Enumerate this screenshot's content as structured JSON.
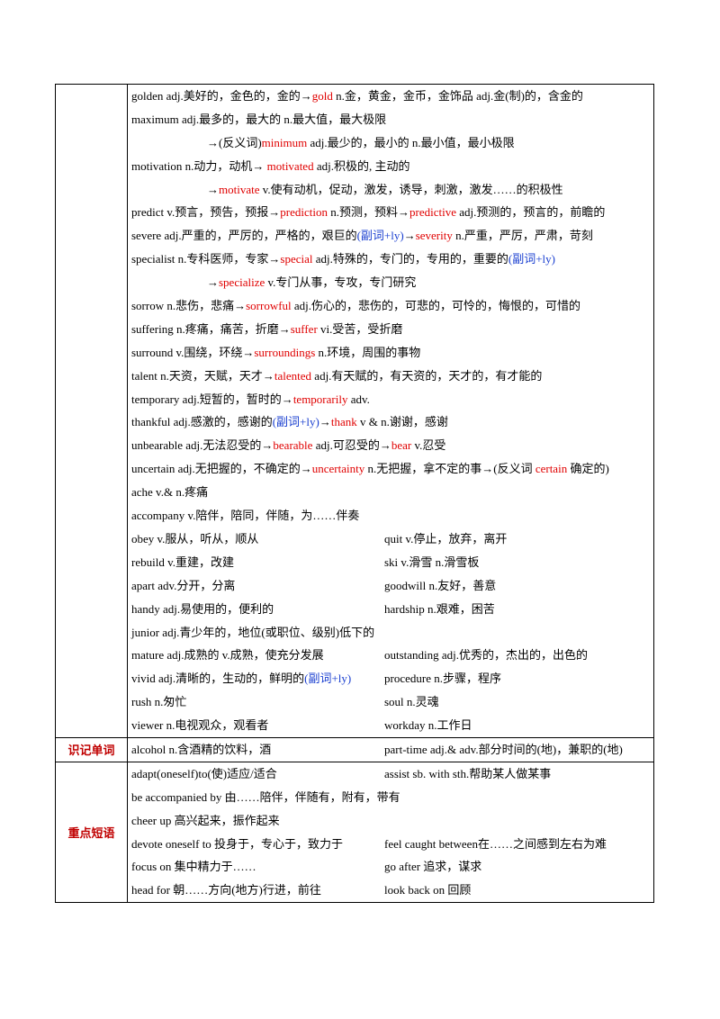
{
  "section1": {
    "lines": [
      {
        "parts": [
          {
            "t": "golden adj.美好的，金色的，金的→"
          },
          {
            "t": "gold",
            "c": "red"
          },
          {
            "t": " n.金，黄金，金币，金饰品  adj.金(制)的，含金的"
          }
        ]
      },
      {
        "parts": [
          {
            "t": "maximum adj.最多的，最大的  n.最大值，最大极限"
          }
        ]
      },
      {
        "indent": true,
        "parts": [
          {
            "t": "→(反义词)"
          },
          {
            "t": "minimum",
            "c": "red"
          },
          {
            "t": " adj.最少的，最小的  n.最小值，最小极限"
          }
        ]
      },
      {
        "parts": [
          {
            "t": "motivation n.动力，动机→  "
          },
          {
            "t": "motivated",
            "c": "red"
          },
          {
            "t": " adj.积极的, 主动的"
          }
        ]
      },
      {
        "indent": true,
        "parts": [
          {
            "t": "→"
          },
          {
            "t": "motivate",
            "c": "red"
          },
          {
            "t": " v.使有动机，促动，激发，诱导，刺激，激发……的积极性"
          }
        ]
      },
      {
        "parts": [
          {
            "t": "predict v.预言，预告，预报→"
          },
          {
            "t": "prediction",
            "c": "red"
          },
          {
            "t": " n.预测，预料→"
          },
          {
            "t": "predictive",
            "c": "red"
          },
          {
            "t": " adj.预测的，预言的，前瞻的"
          }
        ]
      },
      {
        "parts": [
          {
            "t": "severe adj.严重的，严厉的，严格的，艰巨的"
          },
          {
            "t": "(副词+ly)",
            "c": "blue"
          },
          {
            "t": "→"
          },
          {
            "t": "severity",
            "c": "red"
          },
          {
            "t": " n.严重，严厉，严肃，苛刻"
          }
        ]
      },
      {
        "parts": [
          {
            "t": "specialist n.专科医师，专家→"
          },
          {
            "t": "special",
            "c": "red"
          },
          {
            "t": " adj.特殊的，专门的，专用的，重要的"
          },
          {
            "t": "(副词+ly)",
            "c": "blue"
          }
        ]
      },
      {
        "indent": true,
        "parts": [
          {
            "t": "→"
          },
          {
            "t": "specialize",
            "c": "red"
          },
          {
            "t": " v.专门从事，专攻，专门研究"
          }
        ]
      },
      {
        "parts": [
          {
            "t": "sorrow n.悲伤，悲痛→"
          },
          {
            "t": "sorrowful",
            "c": "red"
          },
          {
            "t": " adj.伤心的，悲伤的，可悲的，可怜的，悔恨的，可惜的"
          }
        ]
      },
      {
        "parts": [
          {
            "t": "suffering n.疼痛，痛苦，折磨→"
          },
          {
            "t": "suffer",
            "c": "red"
          },
          {
            "t": " vi.受苦，受折磨"
          }
        ]
      },
      {
        "parts": [
          {
            "t": "surround v.围绕，环绕→"
          },
          {
            "t": "surroundings",
            "c": "red"
          },
          {
            "t": " n.环境，周围的事物"
          }
        ]
      },
      {
        "parts": [
          {
            "t": "talent n.天资，天赋，天才→"
          },
          {
            "t": "talented",
            "c": "red"
          },
          {
            "t": " adj.有天赋的，有天资的，天才的，有才能的"
          }
        ]
      },
      {
        "parts": [
          {
            "t": "temporary adj.短暂的，暂时的→"
          },
          {
            "t": "temporarily",
            "c": "red"
          },
          {
            "t": " adv."
          }
        ]
      },
      {
        "parts": [
          {
            "t": "thankful adj.感激的，感谢的"
          },
          {
            "t": "(副词+ly)",
            "c": "blue"
          },
          {
            "t": "→"
          },
          {
            "t": "thank",
            "c": "red"
          },
          {
            "t": " v & n.谢谢，感谢"
          }
        ]
      },
      {
        "parts": [
          {
            "t": "unbearable adj.无法忍受的→"
          },
          {
            "t": "bearable",
            "c": "red"
          },
          {
            "t": " adj.可忍受的→"
          },
          {
            "t": "bear",
            "c": "red"
          },
          {
            "t": " v.忍受"
          }
        ]
      },
      {
        "wrap": true,
        "parts": [
          {
            "t": "uncertain adj.无把握的，不确定的→"
          },
          {
            "t": "uncertainty",
            "c": "red"
          },
          {
            "t": " n.无把握，拿不定的事→(反义词  "
          },
          {
            "t": "certain",
            "c": "red"
          },
          {
            "t": " 确定的)"
          }
        ]
      },
      {
        "parts": [
          {
            "t": "ache v.& n.疼痛"
          }
        ]
      },
      {
        "parts": [
          {
            "t": "accompany v.陪伴，陪同，伴随，为……伴奏"
          }
        ]
      }
    ],
    "pairs": [
      {
        "a": "obey v.服从，听从，顺从",
        "b": "quit v.停止，放弃，离开"
      },
      {
        "a": "rebuild v.重建，改建",
        "b": "ski v.滑雪  n.滑雪板"
      },
      {
        "a": "apart adv.分开，分离",
        "b": "goodwill n.友好，善意"
      },
      {
        "a": "handy adj.易使用的，便利的",
        "b": " hardship n.艰难，困苦"
      },
      {
        "a": "junior adj.青少年的，地位(或职位、级别)低下的",
        "b": ""
      },
      {
        "a": "mature adj.成熟的  v.成熟，使充分发展",
        "b": "outstanding adj.优秀的，杰出的，出色的"
      },
      {
        "a": "vivid adj.清晰的，生动的，鲜明的",
        "a_blue": "(副词+ly)",
        "b": "procedure n.步骤，程序"
      },
      {
        "a": "rush n.匆忙",
        "b": "soul n.灵魂"
      },
      {
        "a": "viewer n.电视观众，观看者",
        "b": "workday n.工作日"
      }
    ]
  },
  "section2": {
    "label": "识记单词",
    "a": "alcohol n.含酒精的饮料，酒",
    "b": "part-time adj.& adv.部分时间的(地)，兼职的(地)"
  },
  "section3": {
    "label": "重点短语",
    "rows": [
      {
        "a": "adapt(oneself)to(使)适应/适合",
        "b": "assist sb. with sth.帮助某人做某事"
      },
      {
        "a": "be accompanied by 由……陪伴，伴随有，附有，带有",
        "b": ""
      },
      {
        "a": "cheer up 高兴起来，振作起来",
        "b": ""
      },
      {
        "a": "devote oneself to 投身于，专心于，致力于",
        "b": "feel caught between在……之间感到左右为难"
      },
      {
        "a": "focus on 集中精力于……",
        "b": "go after 追求，谋求"
      },
      {
        "a": "head for 朝……方向(地方)行进，前往",
        "b": " look back on 回顾"
      }
    ]
  }
}
